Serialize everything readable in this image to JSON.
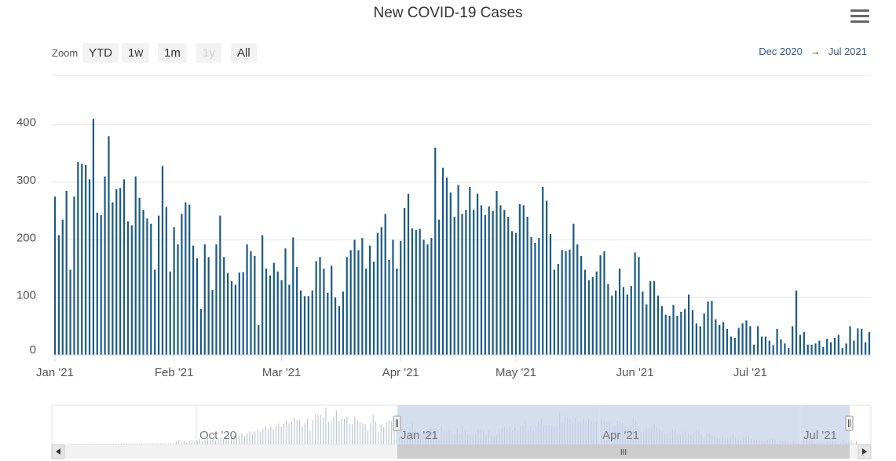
{
  "header": {
    "title": "New COVID-19 Cases",
    "menu_icon": "hamburger-menu-icon"
  },
  "zoom": {
    "label": "Zoom",
    "buttons": [
      {
        "label": "YTD",
        "enabled": true
      },
      {
        "label": "1w",
        "enabled": true
      },
      {
        "label": "1m",
        "enabled": true
      },
      {
        "label": "1y",
        "enabled": false
      },
      {
        "label": "All",
        "enabled": true
      }
    ]
  },
  "range": {
    "from": "Dec 2020",
    "arrow": "→",
    "to": "Jul 2021"
  },
  "colors": {
    "bar": "#1b5a85",
    "grid": "#e6e6e6",
    "nav_fill": "#c7d3ea",
    "nav_bars": "#bfc8d6"
  },
  "chart_data": {
    "type": "bar",
    "title": "New COVID-19 Cases",
    "x_start": "2021-01-01",
    "x_end": "2021-07-29",
    "xticks": [
      "Jan '21",
      "Feb '21",
      "Mar '21",
      "Apr '21",
      "May '21",
      "Jun '21",
      "Jul '21"
    ],
    "yticks": [
      0,
      100,
      200,
      300,
      400
    ],
    "ylim": [
      0,
      420
    ],
    "grid": true,
    "values": [
      275,
      208,
      235,
      285,
      148,
      275,
      335,
      332,
      330,
      305,
      410,
      247,
      243,
      310,
      380,
      265,
      288,
      290,
      305,
      232,
      225,
      310,
      273,
      252,
      237,
      228,
      148,
      242,
      328,
      257,
      145,
      222,
      192,
      245,
      265,
      261,
      190,
      168,
      80,
      192,
      170,
      113,
      192,
      242,
      170,
      142,
      128,
      122,
      143,
      144,
      192,
      180,
      172,
      52,
      208,
      150,
      138,
      160,
      145,
      130,
      185,
      122,
      204,
      153,
      112,
      102,
      102,
      112,
      163,
      170,
      150,
      108,
      155,
      100,
      85,
      110,
      170,
      182,
      200,
      182,
      203,
      150,
      190,
      162,
      212,
      222,
      245,
      165,
      200,
      150,
      198,
      255,
      280,
      220,
      217,
      219,
      200,
      192,
      203,
      360,
      235,
      325,
      308,
      282,
      240,
      295,
      245,
      252,
      292,
      252,
      280,
      260,
      243,
      258,
      250,
      285,
      260,
      252,
      240,
      215,
      212,
      262,
      260,
      240,
      205,
      195,
      203,
      292,
      268,
      210,
      148,
      158,
      182,
      180,
      183,
      228,
      192,
      172,
      148,
      130,
      135,
      145,
      173,
      180,
      123,
      103,
      112,
      150,
      118,
      105,
      120,
      178,
      170,
      110,
      88,
      128,
      128,
      103,
      85,
      70,
      68,
      87,
      68,
      75,
      80,
      105,
      78,
      55,
      50,
      72,
      93,
      94,
      62,
      52,
      57,
      45,
      32,
      30,
      47,
      55,
      60,
      50,
      18,
      50,
      32,
      32,
      25,
      17,
      45,
      27,
      20,
      12,
      50,
      112,
      35,
      40,
      18,
      18,
      20,
      25,
      14,
      28,
      22,
      30,
      35,
      12,
      20,
      50,
      25,
      46,
      45,
      22,
      40
    ]
  },
  "navigator": {
    "labels": [
      "Oct '20",
      "Jan '21",
      "Apr '21",
      "Jul '21"
    ],
    "scroll_label": "III",
    "left_handle": "navigator-left-handle",
    "right_handle": "navigator-right-handle"
  }
}
